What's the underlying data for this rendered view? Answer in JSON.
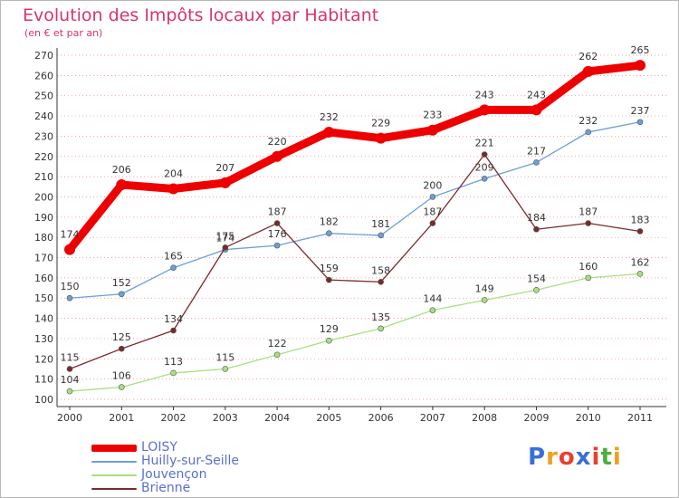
{
  "title": "Evolution des Impôts locaux par Habitant",
  "subtitle": "(en € et par an)",
  "colors": {
    "title": "#d9336d",
    "axis": "#333333",
    "grid": "#f08080",
    "legend_text": "#5a6fd0"
  },
  "logo": {
    "text": "Proxiti",
    "letters": [
      "P",
      "r",
      "o",
      "x",
      "i",
      "t",
      "i"
    ],
    "colors": [
      "#3a6fd8",
      "#f0a020",
      "#e84030",
      "#3a6fd8",
      "#e84030",
      "#4ab040",
      "#f0a020"
    ]
  },
  "chart_data": {
    "type": "line",
    "title": "Evolution des Impôts locaux par Habitant",
    "subtitle": "(en € et par an)",
    "x": [
      "2000",
      "2001",
      "2002",
      "2003",
      "2004",
      "2005",
      "2006",
      "2007",
      "2008",
      "2009",
      "2010",
      "2011"
    ],
    "ylim": [
      100,
      270
    ],
    "yticks": [
      100,
      110,
      120,
      130,
      140,
      150,
      160,
      170,
      180,
      190,
      200,
      210,
      220,
      230,
      240,
      250,
      260,
      270
    ],
    "grid": "horizontal dotted",
    "legend_position": "bottom-left",
    "series": [
      {
        "name": "LOISY",
        "color": "#ee0000",
        "width": 9,
        "values": [
          174,
          206,
          204,
          207,
          220,
          232,
          229,
          233,
          243,
          243,
          262,
          265
        ]
      },
      {
        "name": "Huilly-sur-Seille",
        "color": "#6aa0d8",
        "width": 1.3,
        "values": [
          150,
          152,
          165,
          174,
          176,
          182,
          181,
          200,
          209,
          217,
          232,
          237
        ]
      },
      {
        "name": "Jouvençon",
        "color": "#a8e080",
        "width": 1.3,
        "values": [
          104,
          106,
          113,
          115,
          122,
          129,
          135,
          144,
          149,
          154,
          160,
          162
        ]
      },
      {
        "name": "Brienne",
        "color": "#7a2a2a",
        "width": 1.3,
        "values": [
          115,
          125,
          134,
          175,
          187,
          159,
          158,
          187,
          221,
          184,
          187,
          183
        ]
      }
    ]
  }
}
